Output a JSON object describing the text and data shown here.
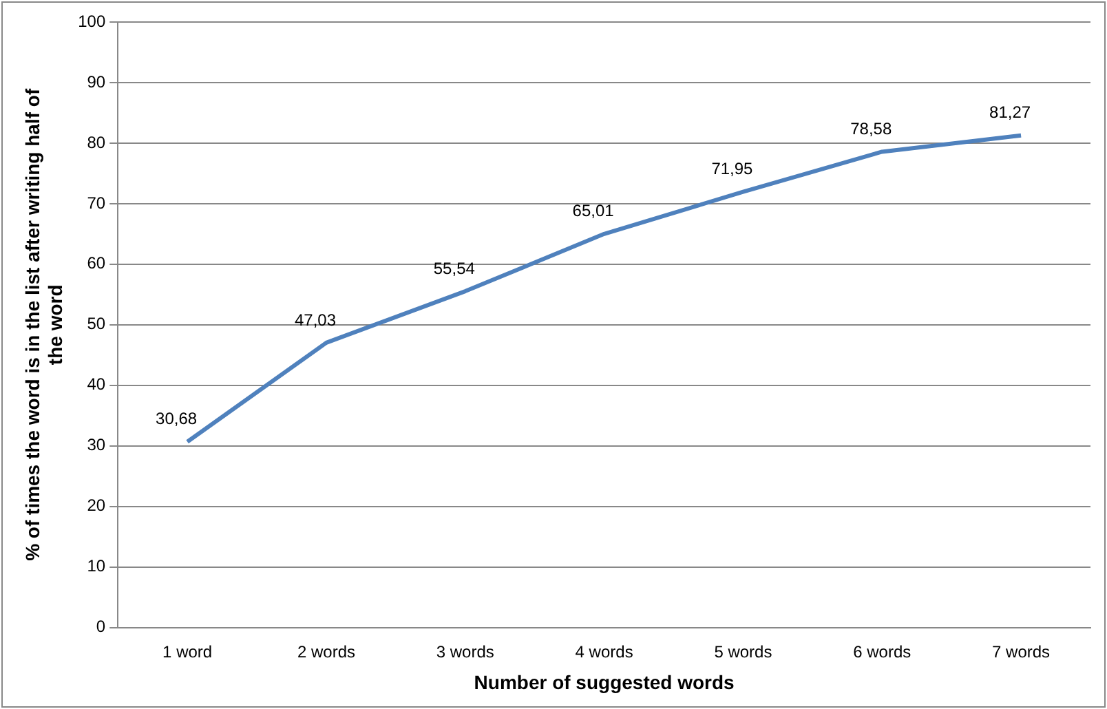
{
  "chart_data": {
    "type": "line",
    "xlabel": "Number of suggested words",
    "ylabel": "% of times the word is in the list after writing half of the word",
    "categories": [
      "1 word",
      "2 words",
      "3 words",
      "4 words",
      "5 words",
      "6 words",
      "7 words"
    ],
    "series": [
      {
        "color": "#4f81bd",
        "values": [
          30.68,
          47.03,
          55.54,
          65.01,
          71.95,
          78.58,
          81.27
        ],
        "value_labels": [
          "30,68",
          "47,03",
          "55,54",
          "65,01",
          "71,95",
          "78,58",
          "81,27"
        ]
      }
    ],
    "ylim": [
      0,
      100
    ],
    "yticks": [
      0,
      10,
      20,
      30,
      40,
      50,
      60,
      70,
      80,
      90,
      100
    ],
    "grid": "y",
    "legend": false,
    "marker": "none",
    "line_style": "solid"
  }
}
